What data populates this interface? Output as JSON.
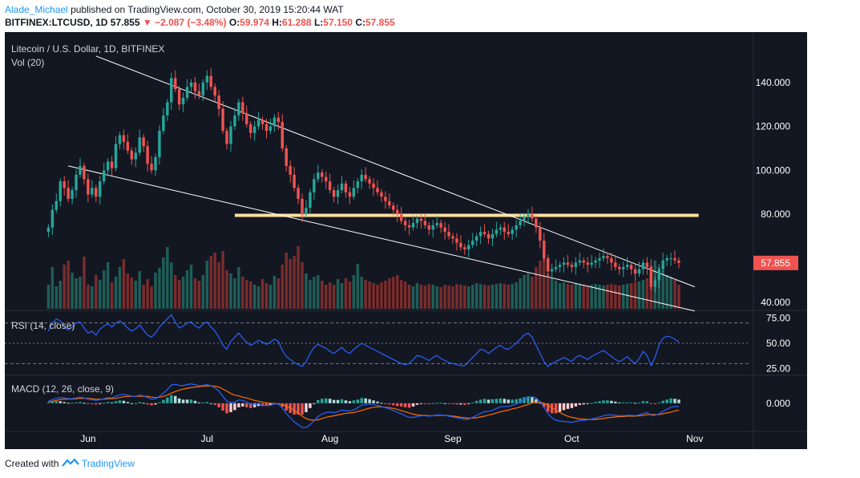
{
  "header": {
    "author": "Alade_Michael",
    "published_text": "published on TradingView.com, October 30, 2019 15:20:44 WAT"
  },
  "symbol_line": {
    "symbol": "BITFINEX:LTCUSD, 1D",
    "last": "57.855",
    "arrow": "▼",
    "change": "−2.087 (−3.48%)",
    "o_label": "O:",
    "o_value": "59.974",
    "h_label": "H:",
    "h_value": "61.288",
    "l_label": "L:",
    "l_value": "57.150",
    "c_label": "C:",
    "c_value": "57.855"
  },
  "footer": {
    "created_with": "Created with",
    "brand": "TradingView"
  },
  "colors": {
    "background": "#131722",
    "up_candle": "#26a69a",
    "down_candle": "#ef5350",
    "up_volume": "#1f5e57",
    "down_volume": "#7a2c2c",
    "trendline": "#ffffff",
    "horizontal_level": "#ffe0a0",
    "rsi_line": "#2962ff",
    "macd_line": "#2962ff",
    "signal_line": "#ff6d00",
    "price_tag": "#ef5350"
  },
  "chart_data": {
    "type": "candlestick",
    "title": "Litecoin / U.S. Dollar, 1D, BITFINEX",
    "volume_label": "Vol (20)",
    "rsi_label": "RSI (14, close)",
    "macd_label": "MACD (12, 26, close, 9)",
    "x_ticks": [
      {
        "label": "Jun",
        "date": "2019-06-01"
      },
      {
        "label": "Jul",
        "date": "2019-07-01"
      },
      {
        "label": "Aug",
        "date": "2019-08-01"
      },
      {
        "label": "Sep",
        "date": "2019-09-01"
      },
      {
        "label": "Oct",
        "date": "2019-10-01"
      },
      {
        "label": "Nov",
        "date": "2019-11-01"
      }
    ],
    "xlim": [
      "2019-05-11",
      "2019-11-15"
    ],
    "price_axis": {
      "ticks": [
        "140.000",
        "120.000",
        "100.000",
        "80.000",
        "40.000"
      ],
      "tick_values": [
        140,
        120,
        100,
        80,
        40
      ],
      "ylim": [
        37,
        160
      ]
    },
    "last_price_label": "57.855",
    "last_price": 57.855,
    "rsi_axis": {
      "ticks": [
        "75.00",
        "50.00",
        "25.00"
      ],
      "tick_values": [
        75,
        50,
        25
      ],
      "ylim": [
        20,
        80
      ],
      "bands": [
        70,
        50,
        30
      ]
    },
    "macd_axis": {
      "ticks": [
        "0.000"
      ],
      "tick_values": [
        0
      ],
      "ylim": [
        -5,
        6.5
      ]
    },
    "horizontal_level": {
      "value": 79.5,
      "from": "2019-07-08",
      "to": "2019-11-02"
    },
    "trendlines": [
      {
        "from": {
          "date": "2019-06-03",
          "price": 152
        },
        "to": {
          "date": "2019-11-01",
          "price": 47
        }
      },
      {
        "from": {
          "date": "2019-05-27",
          "price": 102
        },
        "to": {
          "date": "2019-11-01",
          "price": 36
        }
      }
    ],
    "closes": [
      74,
      82,
      86,
      95,
      92,
      87,
      91,
      98,
      102,
      96,
      89,
      92,
      88,
      95,
      100,
      104,
      101,
      112,
      116,
      113,
      109,
      105,
      108,
      115,
      111,
      103,
      100,
      106,
      118,
      125,
      131,
      142,
      137,
      130,
      133,
      138,
      140,
      136,
      134,
      140,
      143,
      138,
      134,
      128,
      118,
      112,
      120,
      125,
      131,
      126,
      121,
      117,
      120,
      123,
      121,
      118,
      120,
      124,
      122,
      110,
      102,
      98,
      92,
      87,
      80,
      83,
      90,
      96,
      99,
      97,
      95,
      91,
      88,
      91,
      94,
      90,
      88,
      92,
      95,
      98,
      96,
      94,
      92,
      90,
      88,
      86,
      84,
      82,
      80,
      77,
      75,
      74,
      76,
      78,
      77,
      75,
      73,
      75,
      76,
      74,
      72,
      70,
      69,
      67,
      65,
      64,
      66,
      68,
      70,
      72,
      71,
      69,
      71,
      73,
      74,
      72,
      71,
      73,
      75,
      77,
      79,
      80,
      78,
      74,
      68,
      60,
      54,
      55,
      56,
      57,
      58,
      57,
      56,
      58,
      59,
      58,
      57,
      58,
      59,
      60,
      61,
      60,
      58,
      56,
      55,
      56,
      57,
      55,
      53,
      55,
      58,
      56,
      47,
      50,
      55,
      59,
      60,
      60,
      59,
      57.855
    ],
    "volume_label_note": "Vol (20)",
    "volume": [
      30,
      52,
      28,
      35,
      55,
      60,
      45,
      38,
      40,
      65,
      30,
      28,
      42,
      36,
      48,
      58,
      33,
      40,
      52,
      62,
      44,
      39,
      35,
      47,
      30,
      37,
      28,
      45,
      51,
      64,
      77,
      58,
      42,
      36,
      40,
      48,
      55,
      38,
      35,
      42,
      60,
      66,
      70,
      58,
      72,
      48,
      44,
      38,
      52,
      40,
      36,
      34,
      30,
      28,
      37,
      32,
      30,
      41,
      38,
      55,
      70,
      62,
      66,
      78,
      58,
      44,
      36,
      40,
      42,
      35,
      30,
      33,
      30,
      37,
      32,
      38,
      34,
      42,
      56,
      40,
      36,
      34,
      32,
      30,
      33,
      35,
      38,
      40,
      42,
      36,
      34,
      30,
      28,
      32,
      30,
      29,
      31,
      30,
      28,
      27,
      30,
      29,
      28,
      31,
      30,
      29,
      28,
      30,
      32,
      31,
      30,
      29,
      30,
      31,
      32,
      31,
      30,
      31,
      33,
      38,
      42,
      44,
      40,
      52,
      60,
      70,
      44,
      38,
      35,
      32,
      33,
      31,
      30,
      32,
      31,
      30,
      29,
      30,
      31,
      30,
      29,
      30,
      31,
      30,
      29,
      30,
      31,
      32,
      33,
      34,
      36,
      38,
      54,
      60,
      52,
      48,
      42,
      40,
      36,
      30
    ],
    "rsi": [
      62,
      70,
      74,
      72,
      66,
      63,
      66,
      70,
      71,
      65,
      60,
      62,
      58,
      64,
      67,
      69,
      66,
      70,
      72,
      69,
      65,
      62,
      64,
      68,
      63,
      58,
      56,
      60,
      66,
      70,
      74,
      78,
      71,
      65,
      67,
      70,
      71,
      67,
      65,
      69,
      71,
      66,
      62,
      56,
      48,
      44,
      52,
      56,
      60,
      55,
      51,
      48,
      50,
      53,
      51,
      49,
      51,
      54,
      52,
      43,
      37,
      34,
      31,
      29,
      27,
      32,
      40,
      46,
      49,
      47,
      45,
      42,
      40,
      43,
      46,
      42,
      40,
      44,
      47,
      50,
      48,
      46,
      44,
      42,
      40,
      38,
      36,
      34,
      32,
      30,
      29,
      30,
      34,
      38,
      37,
      35,
      33,
      36,
      38,
      35,
      33,
      31,
      30,
      29,
      28,
      28,
      32,
      36,
      40,
      44,
      43,
      40,
      43,
      46,
      48,
      45,
      44,
      47,
      50,
      54,
      58,
      60,
      56,
      48,
      40,
      32,
      27,
      30,
      32,
      34,
      36,
      34,
      32,
      36,
      38,
      36,
      34,
      37,
      39,
      41,
      43,
      40,
      37,
      34,
      32,
      34,
      37,
      33,
      30,
      35,
      42,
      38,
      28,
      36,
      48,
      55,
      57,
      56,
      54,
      51
    ],
    "macd": [
      0.5,
      0.9,
      1.2,
      1.4,
      1.3,
      1.1,
      1.1,
      1.3,
      1.5,
      1.3,
      1.0,
      0.9,
      0.7,
      0.9,
      1.1,
      1.4,
      1.3,
      1.7,
      2.1,
      2.2,
      2.0,
      1.7,
      1.7,
      2.0,
      1.8,
      1.4,
      1.0,
      1.1,
      1.7,
      2.5,
      3.4,
      4.5,
      4.7,
      4.4,
      4.4,
      4.6,
      4.8,
      4.6,
      4.3,
      4.4,
      4.6,
      4.3,
      3.8,
      3.0,
      1.7,
      0.5,
      0.2,
      0.3,
      0.8,
      0.7,
      0.3,
      -0.2,
      -0.3,
      -0.2,
      -0.4,
      -0.6,
      -0.5,
      -0.2,
      -0.2,
      -1.2,
      -2.5,
      -3.6,
      -4.6,
      -5.3,
      -6.0,
      -6.0,
      -5.3,
      -4.3,
      -3.3,
      -2.7,
      -2.3,
      -2.2,
      -2.3,
      -2.1,
      -1.7,
      -1.8,
      -1.9,
      -1.6,
      -1.1,
      -0.5,
      -0.3,
      -0.2,
      -0.3,
      -0.5,
      -0.8,
      -1.1,
      -1.4,
      -1.8,
      -2.2,
      -2.6,
      -3.1,
      -3.5,
      -3.5,
      -3.3,
      -3.1,
      -3.1,
      -3.2,
      -3.1,
      -2.9,
      -2.9,
      -3.0,
      -3.2,
      -3.4,
      -3.6,
      -3.8,
      -4.0,
      -3.9,
      -3.5,
      -3.0,
      -2.5,
      -2.1,
      -2.0,
      -1.7,
      -1.3,
      -0.9,
      -0.8,
      -0.8,
      -0.5,
      -0.2,
      0.3,
      0.9,
      1.4,
      1.6,
      1.3,
      0.4,
      -1.0,
      -2.6,
      -3.6,
      -4.2,
      -4.4,
      -4.5,
      -4.6,
      -4.7,
      -4.5,
      -4.3,
      -4.2,
      -4.1,
      -3.9,
      -3.7,
      -3.4,
      -3.1,
      -2.9,
      -2.9,
      -3.0,
      -3.1,
      -3.1,
      -3.0,
      -3.0,
      -3.1,
      -2.9,
      -2.5,
      -2.3,
      -3.0,
      -3.0,
      -2.6,
      -2.0,
      -1.5,
      -1.0,
      -0.8,
      -0.8
    ],
    "signal": [
      0.3,
      0.5,
      0.7,
      0.9,
      1.0,
      1.0,
      1.0,
      1.1,
      1.2,
      1.2,
      1.2,
      1.1,
      1.0,
      1.0,
      1.0,
      1.1,
      1.1,
      1.2,
      1.4,
      1.6,
      1.7,
      1.7,
      1.7,
      1.7,
      1.7,
      1.7,
      1.5,
      1.4,
      1.5,
      1.7,
      2.0,
      2.5,
      2.9,
      3.2,
      3.5,
      3.7,
      3.9,
      4.0,
      4.1,
      4.2,
      4.3,
      4.3,
      4.2,
      4.0,
      3.5,
      3.0,
      2.4,
      2.0,
      1.8,
      1.5,
      1.3,
      1.0,
      0.7,
      0.5,
      0.3,
      0.1,
      -0.0,
      -0.1,
      -0.1,
      -0.3,
      -0.7,
      -1.2,
      -1.8,
      -2.5,
      -3.2,
      -3.8,
      -4.1,
      -4.2,
      -4.1,
      -3.8,
      -3.5,
      -3.3,
      -3.1,
      -2.9,
      -2.7,
      -2.5,
      -2.4,
      -2.3,
      -2.0,
      -1.8,
      -1.5,
      -1.2,
      -1.0,
      -0.9,
      -0.9,
      -1.0,
      -1.1,
      -1.3,
      -1.5,
      -1.8,
      -2.1,
      -2.4,
      -2.7,
      -2.9,
      -3.0,
      -3.0,
      -3.1,
      -3.1,
      -3.0,
      -3.0,
      -3.0,
      -3.1,
      -3.2,
      -3.3,
      -3.5,
      -3.6,
      -3.7,
      -3.7,
      -3.6,
      -3.4,
      -3.2,
      -2.9,
      -2.7,
      -2.4,
      -2.1,
      -1.9,
      -1.7,
      -1.4,
      -1.2,
      -0.9,
      -0.6,
      -0.3,
      0.1,
      0.3,
      0.3,
      0.0,
      -0.5,
      -1.1,
      -1.7,
      -2.3,
      -2.8,
      -3.2,
      -3.5,
      -3.7,
      -3.9,
      -3.9,
      -4.0,
      -4.0,
      -4.0,
      -3.9,
      -3.8,
      -3.6,
      -3.5,
      -3.4,
      -3.3,
      -3.3,
      -3.2,
      -3.2,
      -3.2,
      -3.1,
      -3.0,
      -2.8,
      -2.8,
      -2.8,
      -2.8,
      -2.6,
      -2.4,
      -2.2,
      -1.9,
      -1.7
    ]
  }
}
